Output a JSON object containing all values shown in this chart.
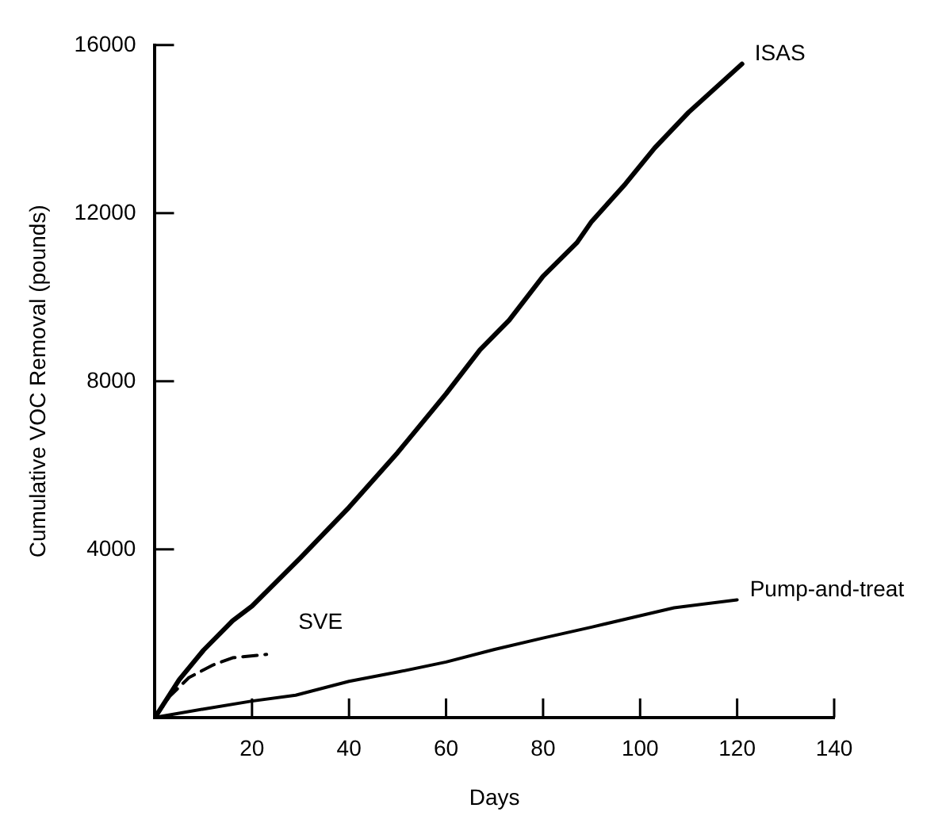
{
  "chart_data": {
    "type": "line",
    "xlabel": "Days",
    "ylabel": "Cumulative VOC Removal (pounds)",
    "xlim": [
      0,
      140
    ],
    "xticks": [
      20,
      40,
      60,
      80,
      100,
      120,
      140
    ],
    "ylim": [
      0,
      16000
    ],
    "yticks": [
      4000,
      8000,
      12000,
      16000
    ],
    "legend": false,
    "marker": "none",
    "series": [
      {
        "name": "ISAS",
        "color": "#000000",
        "line_style": "solid",
        "x": [
          0,
          5,
          10,
          16,
          20,
          30,
          40,
          50,
          60,
          67,
          73,
          80,
          87,
          90,
          97,
          103,
          110,
          121
        ],
        "values": [
          0,
          900,
          1600,
          2300,
          2650,
          3800,
          5000,
          6300,
          7700,
          8750,
          9450,
          10500,
          11300,
          11800,
          12700,
          13550,
          14400,
          15550
        ]
      },
      {
        "name": "SVE",
        "color": "#000000",
        "line_style": "dashed",
        "x": [
          0,
          3,
          7,
          12,
          16,
          23
        ],
        "values": [
          0,
          500,
          950,
          1250,
          1420,
          1500
        ]
      },
      {
        "name": "Pump-and-treat",
        "color": "#000000",
        "line_style": "solid",
        "x": [
          0,
          10,
          20,
          29,
          40,
          50,
          60,
          70,
          80,
          90,
          100,
          107,
          120
        ],
        "values": [
          0,
          200,
          390,
          530,
          860,
          1080,
          1320,
          1620,
          1890,
          2150,
          2420,
          2610,
          2800
        ]
      }
    ]
  }
}
